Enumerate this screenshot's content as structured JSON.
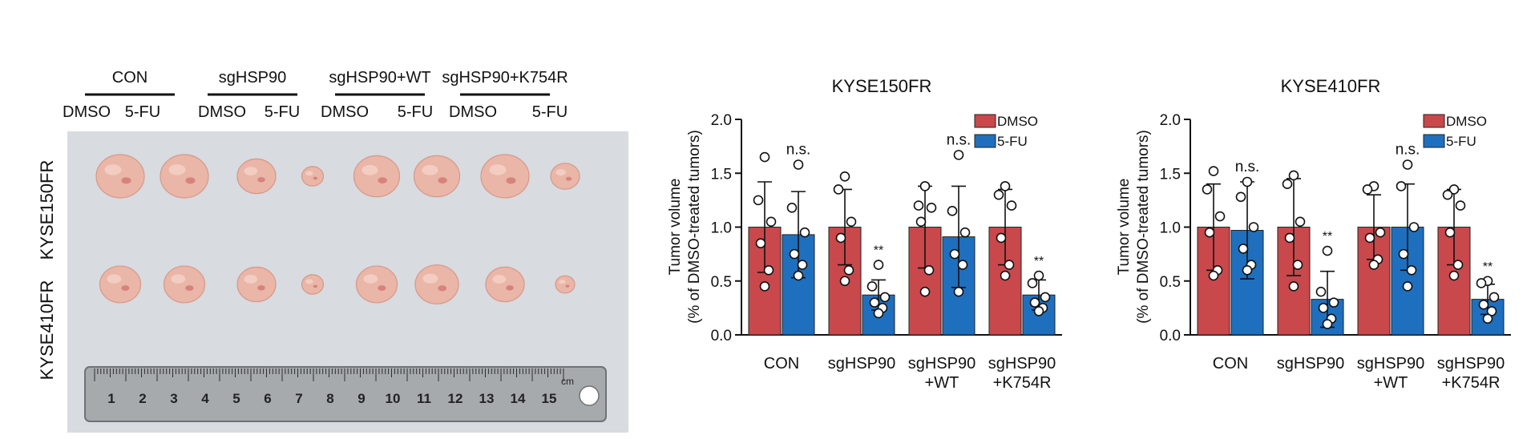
{
  "photo_panel": {
    "groups": [
      "CON",
      "sgHSP90",
      "sgHSP90+WT",
      "sgHSP90+K754R"
    ],
    "treatments": [
      "DMSO",
      "5-FU"
    ],
    "rows": [
      "KYSE150FR",
      "KYSE410FR"
    ],
    "ruler_numbers": [
      "1",
      "2",
      "3",
      "4",
      "5",
      "6",
      "7",
      "8",
      "9",
      "10",
      "11",
      "12",
      "13",
      "14",
      "15"
    ],
    "ruler_mark": "cm",
    "tumor_sizes": [
      [
        1.0,
        1.0,
        0.8,
        0.45,
        0.95,
        0.95,
        1.0,
        0.6
      ],
      [
        0.85,
        0.85,
        0.8,
        0.45,
        0.85,
        0.9,
        0.8,
        0.4
      ]
    ]
  },
  "colors": {
    "dmso": "#c9484b",
    "fu": "#1f6fbf"
  },
  "chart_data": [
    {
      "type": "bar",
      "title": "KYSE150FR",
      "ylabel": "Tumor volume\n(% of DMSO-treated tumors)",
      "ylim": [
        0,
        2.0
      ],
      "yticks": [
        "0.0",
        "0.5",
        "1.0",
        "1.5",
        "2.0"
      ],
      "categories": [
        "CON",
        "sgHSP90",
        "sgHSP90\n+WT",
        "sgHSP90\n+K754R"
      ],
      "series": [
        {
          "name": "DMSO",
          "values": [
            1.0,
            1.0,
            1.0,
            1.0
          ],
          "error": [
            0.42,
            0.35,
            0.38,
            0.35
          ],
          "points": [
            [
              1.65,
              1.25,
              1.05,
              0.85,
              0.6,
              0.45
            ],
            [
              1.47,
              1.35,
              1.05,
              0.9,
              0.6,
              0.5
            ],
            [
              1.38,
              1.2,
              1.18,
              1.05,
              0.6,
              0.4
            ],
            [
              1.38,
              1.3,
              1.2,
              0.9,
              0.65,
              0.55
            ]
          ]
        },
        {
          "name": "5-FU",
          "values": [
            0.93,
            0.37,
            0.91,
            0.37
          ],
          "error": [
            0.4,
            0.14,
            0.47,
            0.14
          ],
          "points": [
            [
              1.58,
              1.18,
              0.95,
              0.75,
              0.65,
              0.55
            ],
            [
              0.65,
              0.45,
              0.35,
              0.3,
              0.25,
              0.2
            ],
            [
              1.67,
              1.15,
              0.95,
              0.75,
              0.65,
              0.4
            ],
            [
              0.55,
              0.48,
              0.35,
              0.3,
              0.25,
              0.22
            ]
          ]
        }
      ],
      "annotations": [
        "n.s.",
        "**",
        "n.s.",
        "**"
      ],
      "legend": "top-right"
    },
    {
      "type": "bar",
      "title": "KYSE410FR",
      "ylabel": "Tumor volume\n(% of DMSO-treated tumors)",
      "ylim": [
        0,
        2.0
      ],
      "yticks": [
        "0.0",
        "0.5",
        "1.0",
        "1.5",
        "2.0"
      ],
      "categories": [
        "CON",
        "sgHSP90",
        "sgHSP90\n+WT",
        "sgHSP90\n+K754R"
      ],
      "series": [
        {
          "name": "DMSO",
          "values": [
            1.0,
            1.0,
            1.0,
            1.0
          ],
          "error": [
            0.4,
            0.45,
            0.3,
            0.35
          ],
          "points": [
            [
              1.52,
              1.35,
              1.1,
              0.95,
              0.6,
              0.55
            ],
            [
              1.48,
              1.4,
              1.05,
              0.9,
              0.65,
              0.45
            ],
            [
              1.38,
              1.35,
              0.95,
              0.9,
              0.7,
              0.65
            ],
            [
              1.35,
              1.3,
              1.2,
              0.95,
              0.65,
              0.55
            ]
          ]
        },
        {
          "name": "5-FU",
          "values": [
            0.97,
            0.33,
            1.0,
            0.33
          ],
          "error": [
            0.45,
            0.26,
            0.4,
            0.14
          ],
          "points": [
            [
              1.42,
              1.28,
              1.0,
              0.8,
              0.65,
              0.6
            ],
            [
              0.78,
              0.4,
              0.3,
              0.25,
              0.15,
              0.1
            ],
            [
              1.58,
              1.38,
              1.0,
              0.75,
              0.6,
              0.45
            ],
            [
              0.5,
              0.48,
              0.35,
              0.28,
              0.22,
              0.15
            ]
          ]
        }
      ],
      "annotations": [
        "n.s.",
        "**",
        "n.s.",
        "**"
      ],
      "legend": "top-right"
    }
  ]
}
